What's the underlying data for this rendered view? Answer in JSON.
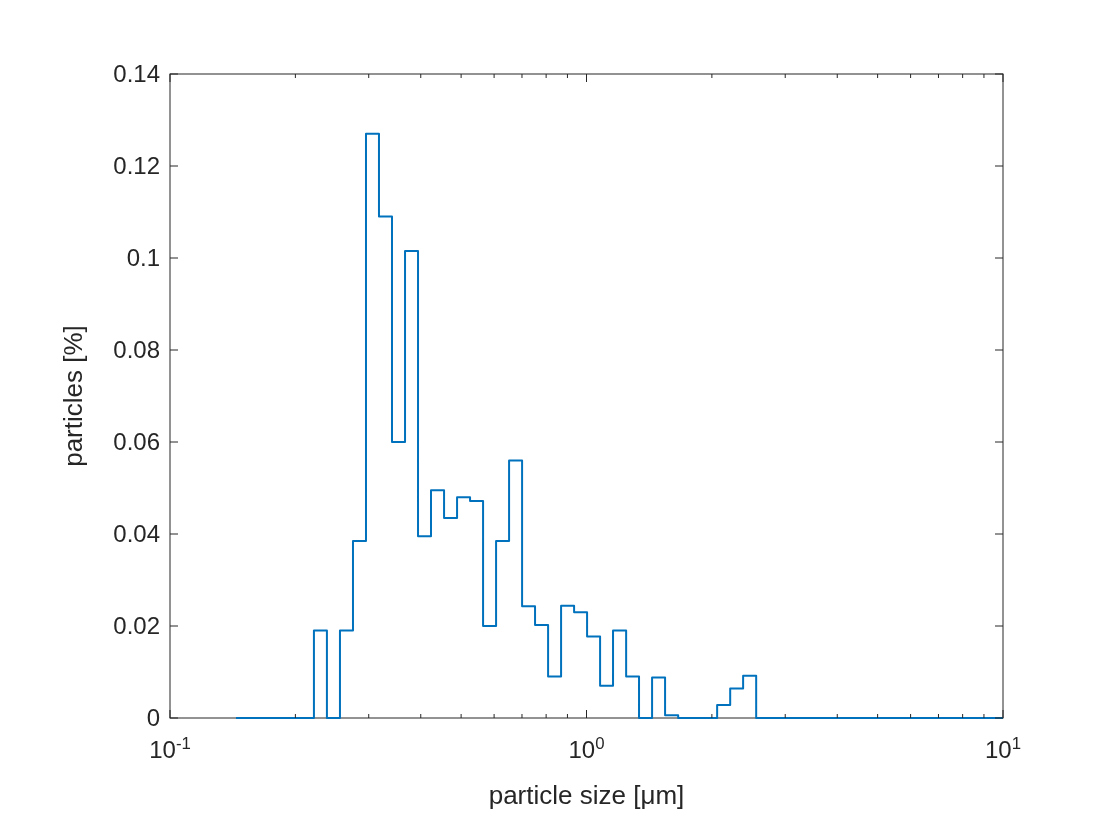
{
  "chart_data": {
    "type": "step",
    "xlabel": "particle size [μm]",
    "ylabel": "particles [%]",
    "log": "x",
    "color": "#0072bd",
    "x": [
      0.144,
      0.1547,
      0.1663,
      0.1786,
      0.1919,
      0.2063,
      0.2216,
      0.2381,
      0.2559,
      0.275,
      0.2955,
      0.3175,
      0.3412,
      0.3667,
      0.394,
      0.4233,
      0.455,
      0.4889,
      0.5253,
      0.5645,
      0.6066,
      0.6518,
      0.7004,
      0.7524,
      0.8087,
      0.8689,
      0.9337,
      1.0032,
      1.078,
      1.158,
      1.245,
      1.337,
      1.437,
      1.544,
      1.66,
      1.783,
      1.917,
      2.059,
      2.213,
      2.377,
      2.555,
      2.746,
      2.95,
      3.17,
      3.406,
      3.66,
      3.933,
      4.226,
      4.541,
      4.88,
      5.243,
      5.634,
      6.053,
      6.505,
      6.99,
      7.51,
      8.07,
      8.673,
      9.32,
      10
    ],
    "values": [
      0,
      0,
      0,
      0,
      0,
      0,
      0.019,
      0,
      0.019,
      0.0385,
      0.127,
      0.109,
      0.06,
      0.1015,
      0.0395,
      0.0495,
      0.0435,
      0.048,
      0.0472,
      0.02,
      0.0385,
      0.056,
      0.0243,
      0.0202,
      0.009,
      0.0244,
      0.023,
      0.0177,
      0.007,
      0.019,
      0.009,
      0,
      0.0088,
      0.0006,
      0,
      0,
      0,
      0.0028,
      0.0064,
      0.0092,
      0,
      0,
      0,
      0,
      0,
      0,
      0,
      0,
      0,
      0,
      0,
      0,
      0,
      0,
      0,
      0,
      0,
      0,
      0,
      0
    ],
    "xlim": [
      0.1,
      10
    ],
    "xticks": [
      {
        "value": 0.1,
        "label": "10$^{-1}$"
      },
      {
        "value": 1,
        "label": "10$^{0}$"
      },
      {
        "value": 10,
        "label": "10$^{1}$"
      }
    ],
    "ylim": [
      0,
      0.14
    ],
    "yticks": [
      0,
      0.02,
      0.04,
      0.06,
      0.08,
      0.1,
      0.12,
      0.14
    ],
    "grid": false
  }
}
